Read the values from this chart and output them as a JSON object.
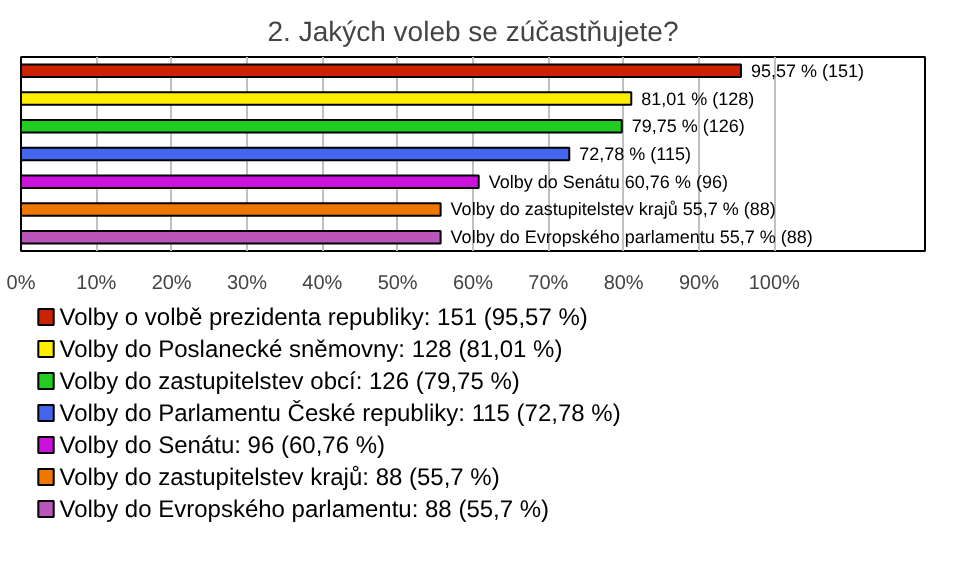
{
  "chart_data": {
    "type": "bar",
    "orientation": "horizontal",
    "title": "2. Jakých voleb se zúčastňujete?",
    "categories": [
      null,
      null,
      null,
      null,
      null,
      null,
      null
    ],
    "series": [
      {
        "name": "Volby o volbě prezidenta republiky: 151 (95,57 %)",
        "color": "#cc2200",
        "values": [
          95.57,
          null,
          null,
          null,
          null,
          null,
          null
        ],
        "value_labels": [
          "95,57 % (151)",
          null,
          null,
          null,
          null,
          null,
          null
        ]
      },
      {
        "name": "Volby do Poslanecké sněmovny: 128 (81,01 %)",
        "color": "#ffee00",
        "values": [
          null,
          81.01,
          null,
          null,
          null,
          null,
          null
        ],
        "value_labels": [
          null,
          "81,01 % (128)",
          null,
          null,
          null,
          null,
          null
        ]
      },
      {
        "name": "Volby do zastupitelstev obcí: 126 (79,75 %)",
        "color": "#22cc22",
        "values": [
          null,
          null,
          79.75,
          null,
          null,
          null,
          null
        ],
        "value_labels": [
          null,
          null,
          "79,75 % (126)",
          null,
          null,
          null,
          null
        ]
      },
      {
        "name": "Volby do Parlamentu České republiky: 115 (72,78 %)",
        "color": "#4466ee",
        "values": [
          null,
          null,
          null,
          72.78,
          null,
          null,
          null
        ],
        "value_labels": [
          null,
          null,
          null,
          "72,78 % (115)",
          null,
          null,
          null
        ]
      },
      {
        "name": "Volby do Senátu: 96 (60,76 %)",
        "color": "#cc11dd",
        "values": [
          null,
          null,
          null,
          null,
          60.76,
          null,
          null
        ],
        "value_labels": [
          null,
          null,
          null,
          null,
          "Volby do Senátu 60,76 % (96)",
          null,
          null
        ]
      },
      {
        "name": "Volby do zastupitelstev krajů: 88 (55,7 %)",
        "color": "#ee7700",
        "values": [
          null,
          null,
          null,
          null,
          null,
          55.7,
          null
        ],
        "value_labels": [
          null,
          null,
          null,
          null,
          null,
          "Volby do zastupitelstev krajů 55,7 % (88)",
          null
        ]
      },
      {
        "name": "Volby do Evropského parlamentu: 88 (55,7 %)",
        "color": "#bb55bb",
        "values": [
          null,
          null,
          null,
          null,
          null,
          null,
          55.7
        ],
        "value_labels": [
          null,
          null,
          null,
          null,
          null,
          null,
          "Volby do Evropského parlamentu 55,7 % (88)"
        ]
      }
    ],
    "xlim": [
      0,
      120
    ],
    "xticks": [
      {
        "value": 0,
        "label": "0%"
      },
      {
        "value": 10,
        "label": "10%"
      },
      {
        "value": 20,
        "label": "20%"
      },
      {
        "value": 30,
        "label": "30%"
      },
      {
        "value": 40,
        "label": "40%"
      },
      {
        "value": 50,
        "label": "50%"
      },
      {
        "value": 60,
        "label": "60%"
      },
      {
        "value": 70,
        "label": "70%"
      },
      {
        "value": 80,
        "label": "80%"
      },
      {
        "value": 90,
        "label": "90%"
      },
      {
        "value": 100,
        "label": "100%"
      }
    ],
    "grid": "x",
    "legend": "bottom",
    "tick_labels": "x"
  }
}
